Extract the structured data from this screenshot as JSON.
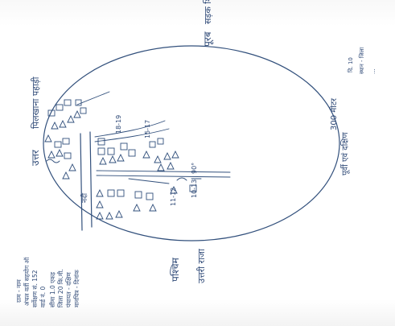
{
  "labels": {
    "north": "उत्तर",
    "north_landmark": "पिलखाना पहाड़ी",
    "east": "पूरब",
    "east_landmark": "सड़क शिवपुर",
    "west": "पश्चिम",
    "west_landmark": "उत्तरी राजा",
    "south_landmark": "पूर्वी एवं दक्षिण",
    "south_note": "300 मीटर",
    "river": "नदी",
    "field_note_1": "18-19",
    "field_note_2": "15-17",
    "field_note_3": "11-12",
    "field_note_4": "10-13",
    "rotation": "90°"
  },
  "info_block": [
    "ग्राम - नाम",
    "अंचल वर्ती सहयोग ऑ",
    "सर्वेक्षण सं. 152",
    "वार्ड नं. 0",
    "सीमा 1.0 एकड़",
    "जिला 20 कि.मी.",
    "पंचायत - दक्षिण",
    "मानचित्र - दिनांक"
  ],
  "corner_note": [
    "दि. 10",
    "स्थान - जिला",
    "..."
  ],
  "colors": {
    "ink": "#32507c",
    "paper": "#ffffff"
  }
}
